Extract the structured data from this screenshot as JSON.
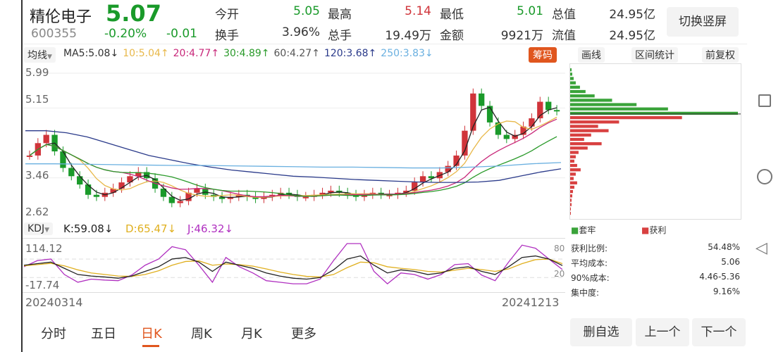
{
  "header": {
    "name": "精伦电子",
    "price": "5.07",
    "code": "600355",
    "change_pct": "-0.20%",
    "change": "-0.01",
    "stats": [
      {
        "label": "今开",
        "value": "5.05",
        "color": "#1a9a2a"
      },
      {
        "label": "最高",
        "value": "5.14",
        "color": "#d0343a"
      },
      {
        "label": "最低",
        "value": "5.01",
        "color": "#1a9a2a"
      },
      {
        "label": "总值",
        "value": "24.95亿",
        "color": "#333"
      },
      {
        "label": "换手",
        "value": "3.96%",
        "color": "#333"
      },
      {
        "label": "总手",
        "value": "19.49万",
        "color": "#333"
      },
      {
        "label": "金额",
        "value": "9921万",
        "color": "#333"
      },
      {
        "label": "流值",
        "value": "24.95亿",
        "color": "#333"
      }
    ],
    "switch_button": "切换竖屏"
  },
  "ma_bar": {
    "selector": "均线",
    "items": [
      {
        "text": "MA5:5.08↓",
        "color": "#333"
      },
      {
        "text": "10:5.04↑",
        "color": "#e8b84a"
      },
      {
        "text": "20:4.77↑",
        "color": "#c8287a"
      },
      {
        "text": "30:4.89↑",
        "color": "#2a9a2a"
      },
      {
        "text": "60:4.27↑",
        "color": "#555"
      },
      {
        "text": "120:3.68↑",
        "color": "#2a3a8a"
      },
      {
        "text": "250:3.83↓",
        "color": "#6ab0e0"
      }
    ],
    "chip_tag": "筹码",
    "tools": [
      "画线",
      "区间统计",
      "前复权"
    ]
  },
  "chart_data": {
    "type": "candlestick",
    "y_ticks": [
      "5.99",
      "5.15",
      "3.46",
      "2.62"
    ],
    "ylim": [
      2.62,
      5.99
    ],
    "closes": [
      4.0,
      4.3,
      4.5,
      4.1,
      3.7,
      3.5,
      3.3,
      3.05,
      3.0,
      3.1,
      3.2,
      3.35,
      3.5,
      3.6,
      3.45,
      3.2,
      3.0,
      2.85,
      2.9,
      3.1,
      3.2,
      3.05,
      3.0,
      2.95,
      3.0,
      3.05,
      3.0,
      2.95,
      3.0,
      3.05,
      3.1,
      3.05,
      3.0,
      3.0,
      3.05,
      3.1,
      3.15,
      3.1,
      3.05,
      3.0,
      3.05,
      3.1,
      3.05,
      3.05,
      3.1,
      3.15,
      3.35,
      3.5,
      3.45,
      3.6,
      3.75,
      4.0,
      4.6,
      5.5,
      5.2,
      4.8,
      4.5,
      4.4,
      4.5,
      4.7,
      4.9,
      5.3,
      5.1,
      5.07
    ],
    "ma_long": [
      4.6,
      4.6,
      4.55,
      4.45,
      4.3,
      4.15,
      4.0,
      3.9,
      3.8,
      3.72,
      3.65,
      3.6,
      3.55,
      3.5,
      3.48,
      3.45,
      3.42,
      3.4,
      3.38,
      3.36,
      3.35,
      3.35,
      3.36,
      3.4,
      3.5,
      3.6,
      3.68
    ],
    "ma250": [
      3.8,
      3.8,
      3.79,
      3.78,
      3.77,
      3.76,
      3.76,
      3.75,
      3.74,
      3.73,
      3.72,
      3.72,
      3.71,
      3.7,
      3.7,
      3.72,
      3.75,
      3.8,
      3.83
    ],
    "chip_distribution": [
      2,
      3,
      5,
      8,
      14,
      22,
      35,
      60,
      95,
      140,
      240,
      160,
      70,
      40,
      55,
      30,
      20,
      45,
      25,
      12,
      8,
      6,
      10,
      15,
      8,
      5,
      10,
      6,
      4,
      3,
      2,
      2,
      1,
      1
    ],
    "chip_legend": [
      {
        "label": "套牢",
        "color": "#3aa33a"
      },
      {
        "label": "获利",
        "color": "#d84040"
      }
    ],
    "chip_stats": [
      {
        "label": "获利比例:",
        "value": "54.48%"
      },
      {
        "label": "平均成本:",
        "value": "5.06"
      },
      {
        "label": "90%成本:",
        "value": "4.46-5.36"
      },
      {
        "label": "集中度:",
        "value": "9.16%"
      }
    ]
  },
  "kdj": {
    "selector": "KDJ",
    "k": "K:59.08↓",
    "d": "D:65.47↓",
    "j": "J:46.32↓",
    "y_ticks": [
      "114.12",
      "-17.74"
    ],
    "right_ticks": [
      "80",
      "20"
    ],
    "k_values": [
      60,
      65,
      70,
      50,
      30,
      25,
      22,
      18,
      25,
      40,
      55,
      80,
      85,
      70,
      40,
      70,
      60,
      50,
      35,
      25,
      18,
      15,
      20,
      45,
      80,
      90,
      60,
      35,
      45,
      40,
      30,
      35,
      50,
      55,
      40,
      30,
      55,
      85,
      90,
      80,
      59
    ],
    "d_values": [
      58,
      62,
      66,
      58,
      45,
      35,
      30,
      25,
      24,
      30,
      42,
      60,
      72,
      74,
      60,
      64,
      62,
      57,
      48,
      38,
      30,
      24,
      22,
      30,
      52,
      70,
      68,
      55,
      50,
      46,
      40,
      38,
      44,
      50,
      46,
      40,
      48,
      65,
      78,
      80,
      65
    ],
    "j_values": [
      55,
      75,
      80,
      30,
      5,
      15,
      12,
      10,
      28,
      60,
      80,
      120,
      110,
      60,
      5,
      85,
      55,
      35,
      10,
      5,
      0,
      0,
      15,
      75,
      130,
      130,
      40,
      0,
      35,
      30,
      15,
      30,
      62,
      65,
      28,
      10,
      70,
      125,
      115,
      80,
      46
    ]
  },
  "dates": {
    "start": "20240314",
    "end": "20241213"
  },
  "bottom_tabs": [
    "分时",
    "五日",
    "日K",
    "周K",
    "月K",
    "更多"
  ],
  "active_tab": "日K",
  "bottom_buttons": [
    "删自选",
    "上一个",
    "下一个"
  ],
  "colors": {
    "up": "#d0343a",
    "down": "#1a9a2a",
    "accent": "#e0561e"
  }
}
